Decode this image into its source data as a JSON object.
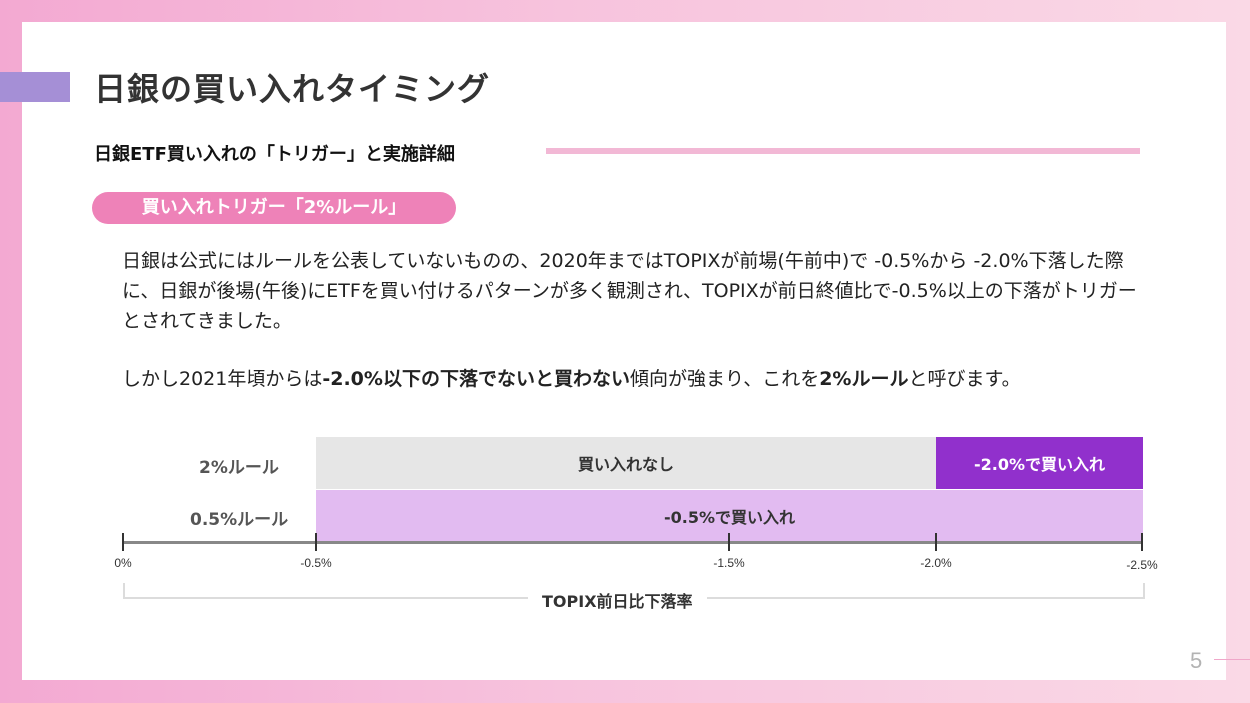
{
  "title": "日銀の買い入れタイミング",
  "subtitle": "日銀ETF買い入れの「トリガー」と実施詳細",
  "pill_label": "買い入れトリガー「2%ルール」",
  "paragraph1": "日銀は公式にはルールを公表していないものの、2020年まではTOPIXが前場(午前中)で -0.5%から -2.0%下落した際に、日銀が後場(午後)にETFを買い付けるパターンが多く観測され、TOPIXが前日終値比で-0.5%以上の下落がトリガーとされてきました。",
  "paragraph2": {
    "part1": "しかし2021年頃からは",
    "bold1": "-2.0%以下の下落でないと買わない",
    "part2": "傾向が強まり、これを",
    "bold2": "2%ルール",
    "part3": "と呼びます。"
  },
  "diagram": {
    "rows": [
      {
        "label": "2%ルール",
        "segments": [
          {
            "text": "買い入れなし",
            "color": "#e6e6e6"
          },
          {
            "text": "-2.0%で買い入れ",
            "color": "#9130cc"
          }
        ]
      },
      {
        "label": "0.5%ルール",
        "segments": [
          {
            "text": "-0.5%で買い入れ",
            "color": "#e2bbf1"
          }
        ]
      }
    ],
    "ticks": [
      "0%",
      "-0.5%",
      "-1.5%",
      "-2.0%",
      "-2.5%"
    ],
    "axis_title": "TOPIX前日比下落率"
  },
  "page_number": "5",
  "colors": {
    "accent": "#a58fd6",
    "pill": "#ee82b8",
    "buy_dark": "#9130cc",
    "buy_light": "#e2bbf1"
  }
}
